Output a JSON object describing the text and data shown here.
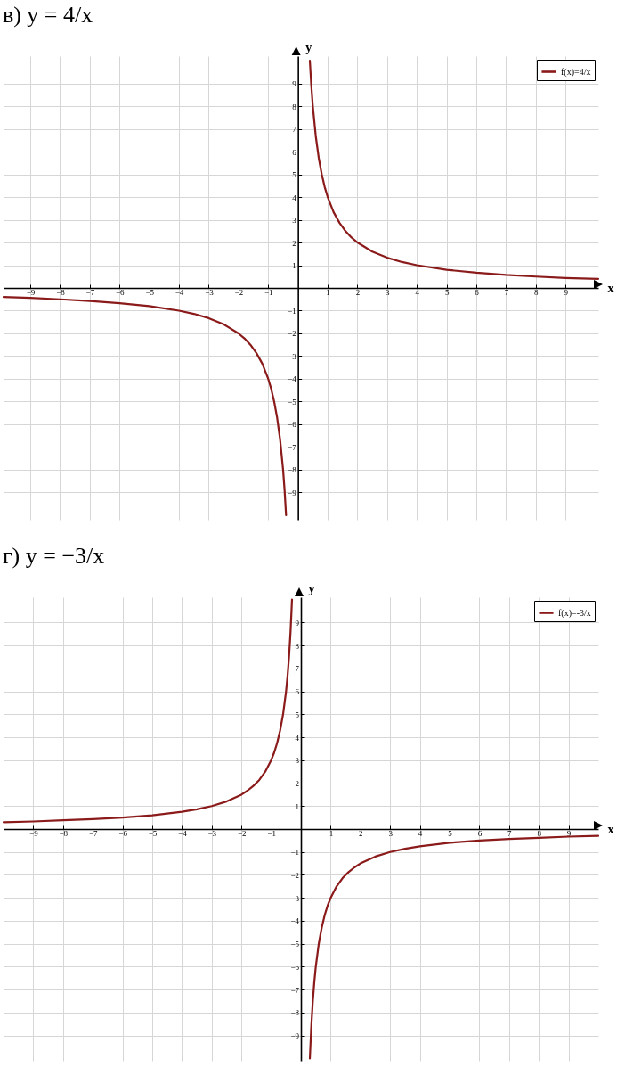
{
  "chart_data": [
    {
      "type": "line",
      "title": "в) y = 4/x",
      "xlabel": "x",
      "ylabel": "y",
      "xlim": [
        -9.9,
        10.1
      ],
      "ylim": [
        -10.2,
        10.2
      ],
      "xticks": [
        -9,
        -8,
        -7,
        -6,
        -5,
        -4,
        -3,
        -2,
        -1,
        1,
        2,
        3,
        4,
        5,
        6,
        7,
        8,
        9
      ],
      "yticks": [
        -9,
        -8,
        -7,
        -6,
        -5,
        -4,
        -3,
        -2,
        -1,
        1,
        2,
        3,
        4,
        5,
        6,
        7,
        8,
        9
      ],
      "grid": true,
      "legend": "top right",
      "line_style": "solid",
      "series": [
        {
          "name": "f(x)=4/x",
          "color": "#8b1a1a",
          "x": [
            -9.9,
            -9,
            -8,
            -7,
            -6,
            -5,
            -4,
            -3.5,
            -3,
            -2.5,
            -2,
            -1.8,
            -1.6,
            -1.4,
            -1.2,
            -1,
            -0.9,
            -0.8,
            -0.7,
            -0.6,
            -0.5,
            -0.45,
            -0.4,
            0,
            0.4,
            0.45,
            0.5,
            0.6,
            0.7,
            0.8,
            0.9,
            1,
            1.2,
            1.4,
            1.6,
            1.8,
            2,
            2.5,
            3,
            3.5,
            4,
            5,
            6,
            7,
            8,
            9,
            10.1
          ],
          "values": [
            -0.4,
            -0.44,
            -0.5,
            -0.57,
            -0.67,
            -0.8,
            -1,
            -1.14,
            -1.33,
            -1.6,
            -2,
            -2.22,
            -2.5,
            -2.86,
            -3.33,
            -4,
            -4.44,
            -5,
            -5.71,
            -6.67,
            -8,
            -8.89,
            -10,
            null,
            10,
            8.89,
            8,
            6.67,
            5.71,
            5,
            4.44,
            4,
            3.33,
            2.86,
            2.5,
            2.22,
            2,
            1.6,
            1.33,
            1.14,
            1,
            0.8,
            0.67,
            0.57,
            0.5,
            0.44,
            0.4
          ]
        }
      ]
    },
    {
      "type": "line",
      "title": "г) y = −3/x",
      "xlabel": "x",
      "ylabel": "y",
      "xlim": [
        -10,
        10
      ],
      "ylim": [
        -10.1,
        10.1
      ],
      "xticks": [
        -9,
        -8,
        -7,
        -6,
        -5,
        -4,
        -3,
        -2,
        -1,
        1,
        2,
        3,
        4,
        5,
        6,
        7,
        8,
        9
      ],
      "yticks": [
        -9,
        -8,
        -7,
        -6,
        -5,
        -4,
        -3,
        -2,
        -1,
        1,
        2,
        3,
        4,
        5,
        6,
        7,
        8,
        9
      ],
      "grid": true,
      "legend": "top right",
      "line_style": "solid",
      "series": [
        {
          "name": "f(x)=-3/x",
          "color": "#8b1a1a",
          "x": [
            -10,
            -9,
            -8,
            -7,
            -6,
            -5,
            -4,
            -3.5,
            -3,
            -2.5,
            -2,
            -1.8,
            -1.6,
            -1.4,
            -1.2,
            -1,
            -0.9,
            -0.8,
            -0.7,
            -0.6,
            -0.5,
            -0.45,
            -0.4,
            -0.35,
            -0.3,
            0,
            0.3,
            0.35,
            0.4,
            0.45,
            0.5,
            0.6,
            0.7,
            0.8,
            0.9,
            1,
            1.2,
            1.4,
            1.6,
            1.8,
            2,
            2.5,
            3,
            3.5,
            4,
            5,
            6,
            7,
            8,
            9,
            10
          ],
          "values": [
            0.3,
            0.33,
            0.38,
            0.43,
            0.5,
            0.6,
            0.75,
            0.86,
            1,
            1.2,
            1.5,
            1.67,
            1.88,
            2.14,
            2.5,
            3,
            3.33,
            3.75,
            4.29,
            5,
            6,
            6.67,
            7.5,
            8.57,
            10,
            null,
            -10,
            -8.57,
            -7.5,
            -6.67,
            -6,
            -5,
            -4.29,
            -3.75,
            -3.33,
            -3,
            -2.5,
            -2.14,
            -1.88,
            -1.67,
            -1.5,
            -1.2,
            -1,
            -0.86,
            -0.75,
            -0.6,
            -0.5,
            -0.43,
            -0.38,
            -0.33,
            -0.3
          ]
        }
      ]
    }
  ]
}
